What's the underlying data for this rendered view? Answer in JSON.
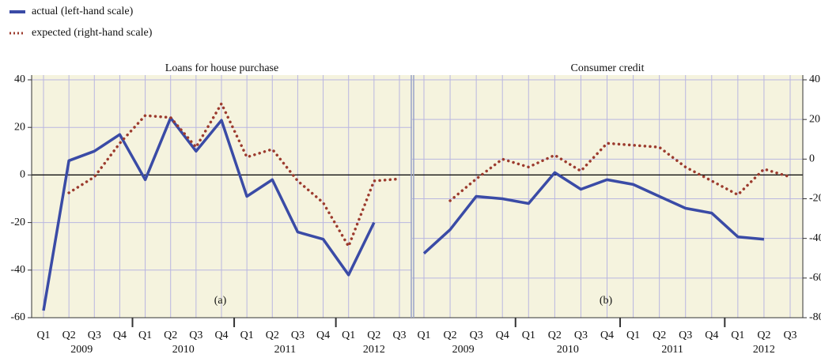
{
  "chart_data": [
    {
      "type": "line",
      "title": "Loans for house purchase",
      "annotation": "(a)",
      "categories": [
        "Q1",
        "Q2",
        "Q3",
        "Q4",
        "Q1",
        "Q2",
        "Q3",
        "Q4",
        "Q1",
        "Q2",
        "Q3",
        "Q4",
        "Q1",
        "Q2",
        "Q3"
      ],
      "years": [
        "2009",
        "2010",
        "2011",
        "2012"
      ],
      "ylim": [
        -60,
        40
      ],
      "yticks": [
        -60,
        -40,
        -20,
        0,
        20,
        40
      ],
      "y2lim": [
        -80,
        40
      ],
      "series": [
        {
          "name": "actual (left-hand scale)",
          "color": "#3a4ba6",
          "axis": "y",
          "style": "solid",
          "values": [
            -57,
            6,
            10,
            17,
            -2,
            24,
            10,
            23,
            -9,
            -2,
            -24,
            -27,
            -42,
            -20,
            null
          ]
        },
        {
          "name": "expected (right-hand scale)",
          "color": "#9c3b2e",
          "axis": "y2",
          "style": "dotted",
          "values": [
            null,
            -17,
            -9,
            8,
            22,
            21,
            6,
            28,
            1,
            5,
            -11,
            -22,
            -44,
            -11,
            -10
          ]
        }
      ]
    },
    {
      "type": "line",
      "title": "Consumer credit",
      "annotation": "(b)",
      "categories": [
        "Q1",
        "Q2",
        "Q3",
        "Q4",
        "Q1",
        "Q2",
        "Q3",
        "Q4",
        "Q1",
        "Q2",
        "Q3",
        "Q4",
        "Q1",
        "Q2",
        "Q3"
      ],
      "years": [
        "2009",
        "2010",
        "2011",
        "2012"
      ],
      "ylim": [
        -60,
        40
      ],
      "y2lim": [
        -80,
        40
      ],
      "y2ticks": [
        -80,
        -60,
        -40,
        -20,
        0,
        20,
        40
      ],
      "series": [
        {
          "color": "#3a4ba6",
          "axis": "y",
          "style": "solid",
          "values": [
            -33,
            -23,
            -9,
            -10,
            -12,
            1,
            -6,
            -2,
            -4,
            -9,
            -14,
            -16,
            -26,
            -27,
            null
          ]
        },
        {
          "color": "#9c3b2e",
          "axis": "y2",
          "style": "dotted",
          "values": [
            null,
            -21,
            -10,
            0,
            -4,
            2,
            -6,
            8,
            7,
            6,
            -4,
            -11,
            -18,
            -5,
            -9
          ]
        }
      ]
    }
  ]
}
